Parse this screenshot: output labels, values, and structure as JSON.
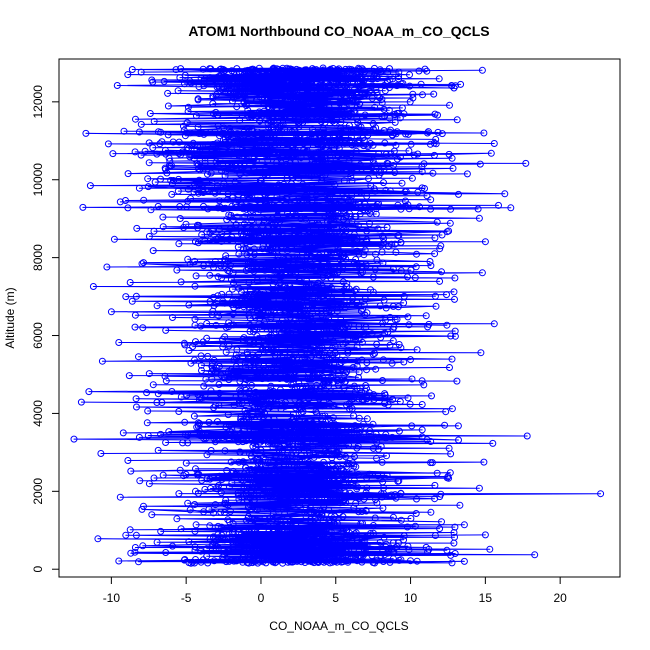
{
  "chart_data": {
    "type": "scatter",
    "style": "points-connected-by-lines",
    "title": "ATOM1 Northbound CO_NOAA_m_CO_QCLS",
    "xlabel": "CO_NOAA_m_CO_QCLS",
    "ylabel": "Altitude (m)",
    "xlim": [
      -13.5,
      24
    ],
    "ylim": [
      -200,
      13100
    ],
    "xticks": [
      -10,
      -5,
      0,
      5,
      10,
      15,
      20
    ],
    "yticks": [
      0,
      2000,
      4000,
      6000,
      8000,
      10000,
      12000
    ],
    "grid": false,
    "legend": "none",
    "color": "#0000ff",
    "marker": "open-circle",
    "series": [
      {
        "points": [
          {
            "x": 14.8,
            "y": 12810
          },
          {
            "x": -8.6,
            "y": 12830
          },
          {
            "x": 6.2,
            "y": 12800
          },
          {
            "x": -8.9,
            "y": 12700
          },
          {
            "x": 4.1,
            "y": 12640
          },
          {
            "x": -7.3,
            "y": 12560
          },
          {
            "x": 9.2,
            "y": 12590
          },
          {
            "x": -9.6,
            "y": 12420
          },
          {
            "x": 6.5,
            "y": 12460
          },
          {
            "x": -2.1,
            "y": 12280
          },
          {
            "x": 10.8,
            "y": 12180
          },
          {
            "x": -4.2,
            "y": 12050
          },
          {
            "x": 12.6,
            "y": 11910
          },
          {
            "x": -7.4,
            "y": 11700
          },
          {
            "x": 11.8,
            "y": 11660
          },
          {
            "x": -8.0,
            "y": 11420
          },
          {
            "x": 14.9,
            "y": 11200
          },
          {
            "x": -11.7,
            "y": 11190
          },
          {
            "x": 15.6,
            "y": 10930
          },
          {
            "x": -10.2,
            "y": 10920
          },
          {
            "x": 15.4,
            "y": 10680
          },
          {
            "x": -9.9,
            "y": 10670
          },
          {
            "x": 17.7,
            "y": 10420
          },
          {
            "x": -6.4,
            "y": 10300
          },
          {
            "x": 13.8,
            "y": 10150
          },
          {
            "x": -11.4,
            "y": 9850
          },
          {
            "x": 16.3,
            "y": 9640
          },
          {
            "x": -9.4,
            "y": 9430
          },
          {
            "x": 16.7,
            "y": 9280
          },
          {
            "x": -11.9,
            "y": 9290
          },
          {
            "x": 14.6,
            "y": 9010
          },
          {
            "x": -8.3,
            "y": 8750
          },
          {
            "x": 12.1,
            "y": 8580
          },
          {
            "x": -9.8,
            "y": 8470
          },
          {
            "x": 15.0,
            "y": 8410
          },
          {
            "x": -7.2,
            "y": 8180
          },
          {
            "x": 11.3,
            "y": 7900
          },
          {
            "x": -10.3,
            "y": 7760
          },
          {
            "x": 14.8,
            "y": 7610
          },
          {
            "x": -11.2,
            "y": 7260
          },
          {
            "x": 12.4,
            "y": 7050
          },
          {
            "x": -8.6,
            "y": 6880
          },
          {
            "x": 11.7,
            "y": 6750
          },
          {
            "x": -10.0,
            "y": 6610
          },
          {
            "x": 15.6,
            "y": 6300
          },
          {
            "x": -7.9,
            "y": 6200
          },
          {
            "x": 13.0,
            "y": 5980
          },
          {
            "x": -9.5,
            "y": 5820
          },
          {
            "x": 14.7,
            "y": 5560
          },
          {
            "x": -10.6,
            "y": 5340
          },
          {
            "x": 12.6,
            "y": 5180
          },
          {
            "x": -8.8,
            "y": 4970
          },
          {
            "x": 13.1,
            "y": 4830
          },
          {
            "x": -11.5,
            "y": 4560
          },
          {
            "x": 11.4,
            "y": 4450
          },
          {
            "x": -12.0,
            "y": 4290
          },
          {
            "x": 12.8,
            "y": 4120
          },
          {
            "x": -7.6,
            "y": 3760
          },
          {
            "x": 13.2,
            "y": 3680
          },
          {
            "x": -9.2,
            "y": 3500
          },
          {
            "x": 17.8,
            "y": 3420
          },
          {
            "x": -12.5,
            "y": 3340
          },
          {
            "x": 15.5,
            "y": 3230
          },
          {
            "x": -10.7,
            "y": 2970
          },
          {
            "x": 14.9,
            "y": 2750
          },
          {
            "x": -8.7,
            "y": 2520
          },
          {
            "x": 12.5,
            "y": 2380
          },
          {
            "x": -8.1,
            "y": 2270
          },
          {
            "x": 14.6,
            "y": 2080
          },
          {
            "x": 22.7,
            "y": 1940
          },
          {
            "x": -9.4,
            "y": 1850
          },
          {
            "x": 13.3,
            "y": 1640
          },
          {
            "x": -7.3,
            "y": 1400
          },
          {
            "x": 13.6,
            "y": 1140
          },
          {
            "x": -6.7,
            "y": 970
          },
          {
            "x": 15.0,
            "y": 880
          },
          {
            "x": -10.9,
            "y": 780
          },
          {
            "x": 12.9,
            "y": 670
          },
          {
            "x": -7.9,
            "y": 600
          },
          {
            "x": 15.3,
            "y": 510
          },
          {
            "x": -8.7,
            "y": 410
          },
          {
            "x": 18.3,
            "y": 370
          },
          {
            "x": -9.5,
            "y": 210
          },
          {
            "x": 13.6,
            "y": 200
          },
          {
            "x": 2.0,
            "y": 190
          }
        ]
      }
    ]
  }
}
